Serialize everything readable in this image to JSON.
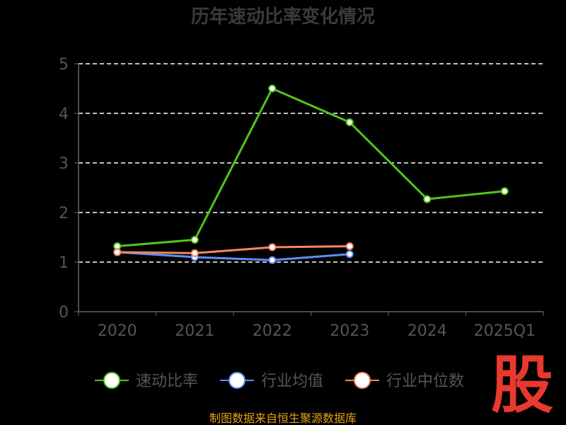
{
  "chart_data": {
    "type": "line",
    "title": "历年速动比率变化情况",
    "categories": [
      "2020",
      "2021",
      "2022",
      "2023",
      "2024",
      "2025Q1"
    ],
    "y_ticks": [
      "0",
      "1",
      "2",
      "3",
      "4",
      "5"
    ],
    "ylim": [
      0,
      5
    ],
    "grid": true,
    "legend_position": "bottom",
    "series": [
      {
        "name": "速动比率",
        "color": "#52c41a",
        "values": [
          1.32,
          1.45,
          4.5,
          3.82,
          2.27,
          2.43
        ]
      },
      {
        "name": "行业均值",
        "color": "#5b8ff9",
        "values": [
          1.2,
          1.1,
          1.04,
          1.16,
          null,
          null
        ]
      },
      {
        "name": "行业中位数",
        "color": "#f4875e",
        "values": [
          1.2,
          1.18,
          1.3,
          1.32,
          null,
          null
        ]
      }
    ]
  },
  "colors": {
    "title": "#3a3a3a",
    "tick_label": "#555555",
    "axis": "#666666",
    "grid": "#ffffff",
    "legend_text": "#555555",
    "watermark": "#e8392f",
    "source": "#e3a11a"
  },
  "watermark_text": "股",
  "source_text": "制图数据来自恒生聚源数据库"
}
